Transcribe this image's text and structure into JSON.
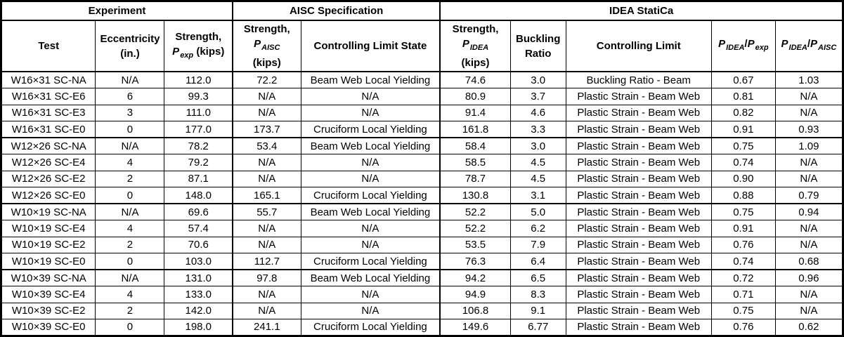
{
  "colors": {
    "border": "#000000",
    "text": "#000000",
    "background": "#ffffff"
  },
  "table": {
    "groups": [
      {
        "label": "Experiment",
        "colspan": 3
      },
      {
        "label": "AISC Specification",
        "colspan": 2
      },
      {
        "label": "IDEA StatiCa",
        "colspan": 5
      }
    ],
    "columns": [
      {
        "name": "test",
        "lines": [
          [
            {
              "t": "Test"
            }
          ]
        ]
      },
      {
        "name": "eccentricity",
        "lines": [
          [
            {
              "t": "Eccentricity"
            }
          ],
          [
            {
              "t": "(in.)"
            }
          ]
        ]
      },
      {
        "name": "strength-p-exp",
        "lines": [
          [
            {
              "t": "Strength,"
            }
          ],
          [
            {
              "t": "P",
              "pvar": true
            },
            {
              "t": "exp",
              "sub": true
            },
            {
              "t": " (kips)"
            }
          ]
        ]
      },
      {
        "name": "strength-p-aisc",
        "lines": [
          [
            {
              "t": "Strength,"
            }
          ],
          [
            {
              "t": "P",
              "pvar": true
            },
            {
              "t": "AISC",
              "sub": true
            }
          ],
          [
            {
              "t": "(kips)"
            }
          ]
        ]
      },
      {
        "name": "controlling-limit-state",
        "lines": [
          [
            {
              "t": "Controlling Limit State"
            }
          ]
        ]
      },
      {
        "name": "strength-p-idea",
        "lines": [
          [
            {
              "t": "Strength,"
            }
          ],
          [
            {
              "t": "P",
              "pvar": true
            },
            {
              "t": "IDEA",
              "sub": true
            }
          ],
          [
            {
              "t": "(kips)"
            }
          ]
        ]
      },
      {
        "name": "buckling-ratio",
        "lines": [
          [
            {
              "t": "Buckling"
            }
          ],
          [
            {
              "t": "Ratio"
            }
          ]
        ]
      },
      {
        "name": "controlling-limit",
        "lines": [
          [
            {
              "t": "Controlling Limit"
            }
          ]
        ]
      },
      {
        "name": "p-idea-over-p-exp",
        "lines": [
          [
            {
              "t": "P",
              "pvar": true
            },
            {
              "t": "IDEA",
              "sub": true
            },
            {
              "t": "/"
            },
            {
              "t": "P",
              "pvar": true
            },
            {
              "t": "exp",
              "sub": true
            }
          ]
        ]
      },
      {
        "name": "p-idea-over-p-aisc",
        "lines": [
          [
            {
              "t": "P",
              "pvar": true
            },
            {
              "t": "IDEA",
              "sub": true
            },
            {
              "t": "/"
            },
            {
              "t": "P",
              "pvar": true
            },
            {
              "t": "AISC",
              "sub": true
            }
          ]
        ]
      }
    ],
    "rows_per_group": 4,
    "rows": [
      [
        "W16×31 SC-NA",
        "N/A",
        "112.0",
        "72.2",
        "Beam Web Local Yielding",
        "74.6",
        "3.0",
        "Buckling Ratio - Beam",
        "0.67",
        "1.03"
      ],
      [
        "W16×31 SC-E6",
        "6",
        "99.3",
        "N/A",
        "N/A",
        "80.9",
        "3.7",
        "Plastic Strain - Beam Web",
        "0.81",
        "N/A"
      ],
      [
        "W16×31 SC-E3",
        "3",
        "111.0",
        "N/A",
        "N/A",
        "91.4",
        "4.6",
        "Plastic Strain - Beam Web",
        "0.82",
        "N/A"
      ],
      [
        "W16×31 SC-E0",
        "0",
        "177.0",
        "173.7",
        "Cruciform Local Yielding",
        "161.8",
        "3.3",
        "Plastic Strain - Beam Web",
        "0.91",
        "0.93"
      ],
      [
        "W12×26 SC-NA",
        "N/A",
        "78.2",
        "53.4",
        "Beam Web Local Yielding",
        "58.4",
        "3.0",
        "Plastic Strain - Beam Web",
        "0.75",
        "1.09"
      ],
      [
        "W12×26 SC-E4",
        "4",
        "79.2",
        "N/A",
        "N/A",
        "58.5",
        "4.5",
        "Plastic Strain - Beam Web",
        "0.74",
        "N/A"
      ],
      [
        "W12×26 SC-E2",
        "2",
        "87.1",
        "N/A",
        "N/A",
        "78.7",
        "4.5",
        "Plastic Strain - Beam Web",
        "0.90",
        "N/A"
      ],
      [
        "W12×26 SC-E0",
        "0",
        "148.0",
        "165.1",
        "Cruciform Local Yielding",
        "130.8",
        "3.1",
        "Plastic Strain - Beam Web",
        "0.88",
        "0.79"
      ],
      [
        "W10×19 SC-NA",
        "N/A",
        "69.6",
        "55.7",
        "Beam Web Local Yielding",
        "52.2",
        "5.0",
        "Plastic Strain - Beam Web",
        "0.75",
        "0.94"
      ],
      [
        "W10×19 SC-E4",
        "4",
        "57.4",
        "N/A",
        "N/A",
        "52.2",
        "6.2",
        "Plastic Strain - Beam Web",
        "0.91",
        "N/A"
      ],
      [
        "W10×19 SC-E2",
        "2",
        "70.6",
        "N/A",
        "N/A",
        "53.5",
        "7.9",
        "Plastic Strain - Beam Web",
        "0.76",
        "N/A"
      ],
      [
        "W10×19 SC-E0",
        "0",
        "103.0",
        "112.7",
        "Cruciform Local Yielding",
        "76.3",
        "6.4",
        "Plastic Strain - Beam Web",
        "0.74",
        "0.68"
      ],
      [
        "W10×39 SC-NA",
        "N/A",
        "131.0",
        "97.8",
        "Beam Web Local Yielding",
        "94.2",
        "6.5",
        "Plastic Strain - Beam Web",
        "0.72",
        "0.96"
      ],
      [
        "W10×39 SC-E4",
        "4",
        "133.0",
        "N/A",
        "N/A",
        "94.9",
        "8.3",
        "Plastic Strain - Beam Web",
        "0.71",
        "N/A"
      ],
      [
        "W10×39 SC-E2",
        "2",
        "142.0",
        "N/A",
        "N/A",
        "106.8",
        "9.1",
        "Plastic Strain - Beam Web",
        "0.75",
        "N/A"
      ],
      [
        "W10×39 SC-E0",
        "0",
        "198.0",
        "241.1",
        "Cruciform Local Yielding",
        "149.6",
        "6.77",
        "Plastic Strain - Beam Web",
        "0.76",
        "0.62"
      ]
    ]
  }
}
